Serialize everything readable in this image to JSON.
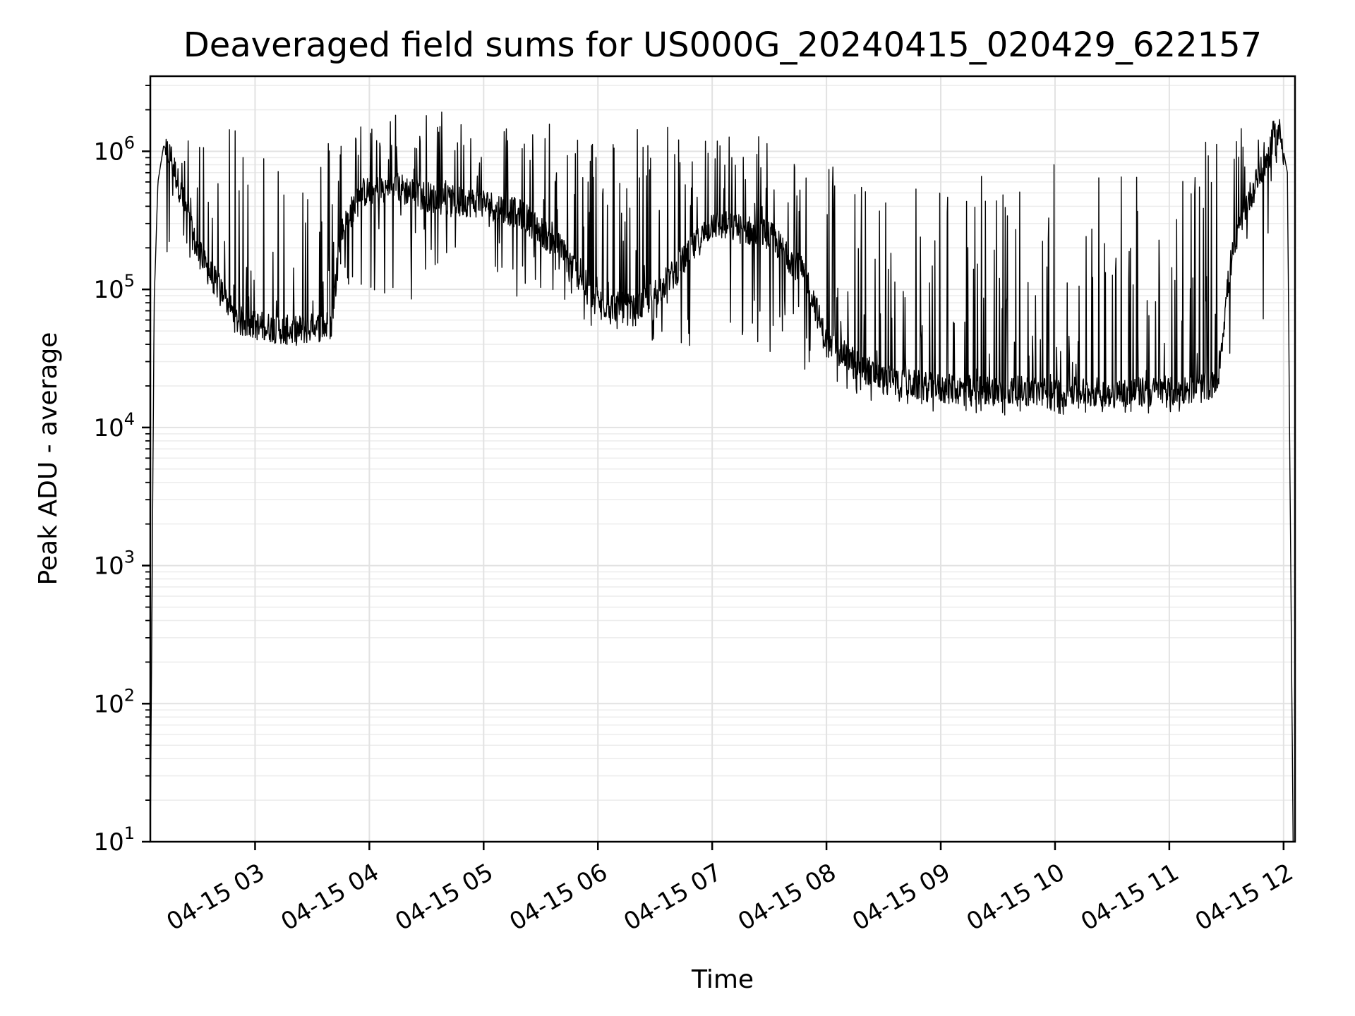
{
  "chart_data": {
    "type": "line",
    "title": "Deaveraged field sums for US000G_20240415_020429_622157",
    "xlabel": "Time",
    "ylabel": "Peak ADU - average",
    "yscale": "log",
    "ylim": [
      10,
      3500000
    ],
    "xlim": [
      "2024-04-15T02:05",
      "2024-04-15T12:06"
    ],
    "grid": "major and minor",
    "line_color": "#000000",
    "x_ticks": [
      {
        "value": "2024-04-15T03:00",
        "label": "04-15 03"
      },
      {
        "value": "2024-04-15T04:00",
        "label": "04-15 04"
      },
      {
        "value": "2024-04-15T05:00",
        "label": "04-15 05"
      },
      {
        "value": "2024-04-15T06:00",
        "label": "04-15 06"
      },
      {
        "value": "2024-04-15T07:00",
        "label": "04-15 07"
      },
      {
        "value": "2024-04-15T08:00",
        "label": "04-15 08"
      },
      {
        "value": "2024-04-15T09:00",
        "label": "04-15 09"
      },
      {
        "value": "2024-04-15T10:00",
        "label": "04-15 10"
      },
      {
        "value": "2024-04-15T11:00",
        "label": "04-15 11"
      },
      {
        "value": "2024-04-15T12:00",
        "label": "04-15 12"
      }
    ],
    "y_ticks": [
      {
        "value": 10,
        "base": "10",
        "exp": "1"
      },
      {
        "value": 100,
        "base": "10",
        "exp": "2"
      },
      {
        "value": 1000,
        "base": "10",
        "exp": "3"
      },
      {
        "value": 10000,
        "base": "10",
        "exp": "4"
      },
      {
        "value": 100000,
        "base": "10",
        "exp": "5"
      },
      {
        "value": 1000000,
        "base": "10",
        "exp": "6"
      }
    ],
    "series": [
      {
        "approximate": true,
        "baseline_points": [
          {
            "x": "2024-04-15T02:05",
            "y": 10
          },
          {
            "x": "2024-04-15T02:07",
            "y": 80000
          },
          {
            "x": "2024-04-15T02:09",
            "y": 600000
          },
          {
            "x": "2024-04-15T02:12",
            "y": 1100000
          },
          {
            "x": "2024-04-15T02:16",
            "y": 900000
          },
          {
            "x": "2024-04-15T02:22",
            "y": 450000
          },
          {
            "x": "2024-04-15T02:30",
            "y": 180000
          },
          {
            "x": "2024-04-15T02:38",
            "y": 120000
          },
          {
            "x": "2024-04-15T02:44",
            "y": 90000
          },
          {
            "x": "2024-04-15T02:50",
            "y": 60000
          },
          {
            "x": "2024-04-15T03:00",
            "y": 55000
          },
          {
            "x": "2024-04-15T03:20",
            "y": 50000
          },
          {
            "x": "2024-04-15T03:40",
            "y": 55000
          },
          {
            "x": "2024-04-15T03:45",
            "y": 250000
          },
          {
            "x": "2024-04-15T03:55",
            "y": 500000
          },
          {
            "x": "2024-04-15T04:15",
            "y": 550000
          },
          {
            "x": "2024-04-15T04:35",
            "y": 450000
          },
          {
            "x": "2024-04-15T05:00",
            "y": 420000
          },
          {
            "x": "2024-04-15T05:20",
            "y": 350000
          },
          {
            "x": "2024-04-15T05:40",
            "y": 200000
          },
          {
            "x": "2024-04-15T06:00",
            "y": 80000
          },
          {
            "x": "2024-04-15T06:20",
            "y": 70000
          },
          {
            "x": "2024-04-15T06:40",
            "y": 130000
          },
          {
            "x": "2024-04-15T07:00",
            "y": 300000
          },
          {
            "x": "2024-04-15T07:30",
            "y": 250000
          },
          {
            "x": "2024-04-15T07:50",
            "y": 120000
          },
          {
            "x": "2024-04-15T08:00",
            "y": 40000
          },
          {
            "x": "2024-04-15T08:30",
            "y": 22000
          },
          {
            "x": "2024-04-15T09:00",
            "y": 19000
          },
          {
            "x": "2024-04-15T10:00",
            "y": 18000
          },
          {
            "x": "2024-04-15T11:00",
            "y": 18000
          },
          {
            "x": "2024-04-15T11:25",
            "y": 20000
          },
          {
            "x": "2024-04-15T11:32",
            "y": 150000
          },
          {
            "x": "2024-04-15T11:40",
            "y": 400000
          },
          {
            "x": "2024-04-15T11:50",
            "y": 800000
          },
          {
            "x": "2024-04-15T11:58",
            "y": 1400000
          },
          {
            "x": "2024-04-15T12:02",
            "y": 700000
          },
          {
            "x": "2024-04-15T12:05",
            "y": 10
          }
        ],
        "upper_envelope_points": [
          {
            "x": "2024-04-15T02:10",
            "y": 1200000
          },
          {
            "x": "2024-04-15T02:50",
            "y": 1500000
          },
          {
            "x": "2024-04-15T03:40",
            "y": 1500000
          },
          {
            "x": "2024-04-15T04:10",
            "y": 2000000
          },
          {
            "x": "2024-04-15T04:40",
            "y": 2100000
          },
          {
            "x": "2024-04-15T05:30",
            "y": 1600000
          },
          {
            "x": "2024-04-15T06:00",
            "y": 1700000
          },
          {
            "x": "2024-04-15T07:00",
            "y": 1500000
          },
          {
            "x": "2024-04-15T07:50",
            "y": 1400000
          },
          {
            "x": "2024-04-15T08:00",
            "y": 1000000
          },
          {
            "x": "2024-04-15T08:30",
            "y": 500000
          },
          {
            "x": "2024-04-15T09:00",
            "y": 650000
          },
          {
            "x": "2024-04-15T10:00",
            "y": 900000
          },
          {
            "x": "2024-04-15T11:00",
            "y": 950000
          },
          {
            "x": "2024-04-15T11:40",
            "y": 1500000
          },
          {
            "x": "2024-04-15T11:58",
            "y": 1700000
          }
        ],
        "lower_envelope_points": [
          {
            "x": "2024-04-15T02:30",
            "y": 150000
          },
          {
            "x": "2024-04-15T02:50",
            "y": 45000
          },
          {
            "x": "2024-04-15T03:20",
            "y": 38000
          },
          {
            "x": "2024-04-15T03:40",
            "y": 42000
          },
          {
            "x": "2024-04-15T04:00",
            "y": 100000
          },
          {
            "x": "2024-04-15T04:30",
            "y": 55000
          },
          {
            "x": "2024-04-15T05:00",
            "y": 120000
          },
          {
            "x": "2024-04-15T05:40",
            "y": 60000
          },
          {
            "x": "2024-04-15T06:10",
            "y": 45000
          },
          {
            "x": "2024-04-15T06:50",
            "y": 38000
          },
          {
            "x": "2024-04-15T07:30",
            "y": 35000
          },
          {
            "x": "2024-04-15T08:00",
            "y": 22000
          },
          {
            "x": "2024-04-15T08:30",
            "y": 14000
          },
          {
            "x": "2024-04-15T09:30",
            "y": 12000
          },
          {
            "x": "2024-04-15T10:30",
            "y": 12500
          },
          {
            "x": "2024-04-15T11:15",
            "y": 11000
          },
          {
            "x": "2024-04-15T11:30",
            "y": 25000
          }
        ]
      }
    ]
  }
}
